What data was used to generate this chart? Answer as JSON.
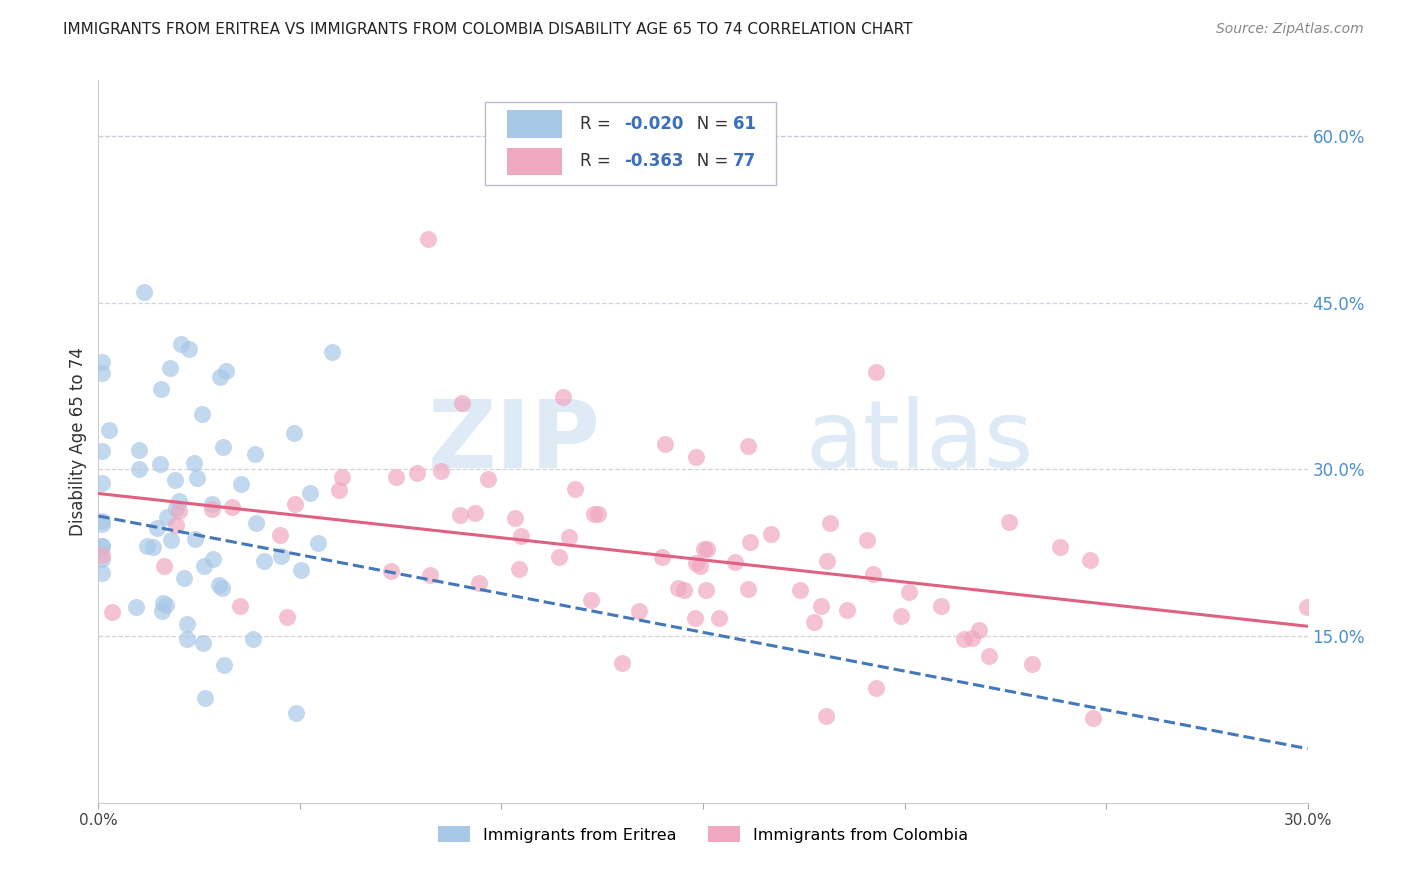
{
  "title": "IMMIGRANTS FROM ERITREA VS IMMIGRANTS FROM COLOMBIA DISABILITY AGE 65 TO 74 CORRELATION CHART",
  "source": "Source: ZipAtlas.com",
  "ylabel": "Disability Age 65 to 74",
  "eritrea_R": -0.02,
  "eritrea_N": 61,
  "colombia_R": -0.363,
  "colombia_N": 77,
  "eritrea_color": "#a8c8e8",
  "eritrea_line_color": "#4478b8",
  "colombia_color": "#f0a8c0",
  "colombia_line_color": "#e06080",
  "xlim": [
    0.0,
    0.3
  ],
  "ylim": [
    0.0,
    0.65
  ],
  "xticks": [
    0.0,
    0.05,
    0.1,
    0.15,
    0.2,
    0.25,
    0.3
  ],
  "xticklabels": [
    "0.0%",
    "",
    "",
    "",
    "",
    "",
    "30.0%"
  ],
  "yticks_right": [
    0.15,
    0.3,
    0.45,
    0.6
  ],
  "ytick_right_labels": [
    "15.0%",
    "30.0%",
    "45.0%",
    "60.0%"
  ],
  "watermark_zip": "ZIP",
  "watermark_atlas": "atlas",
  "legend_eritrea": "Immigrants from Eritrea",
  "legend_colombia": "Immigrants from Colombia",
  "background_color": "#ffffff",
  "grid_color": "#c8c8d8",
  "legend_text_color": "#3a6fbb",
  "title_color": "#222222",
  "source_color": "#888888",
  "ytick_color": "#4a90d0"
}
